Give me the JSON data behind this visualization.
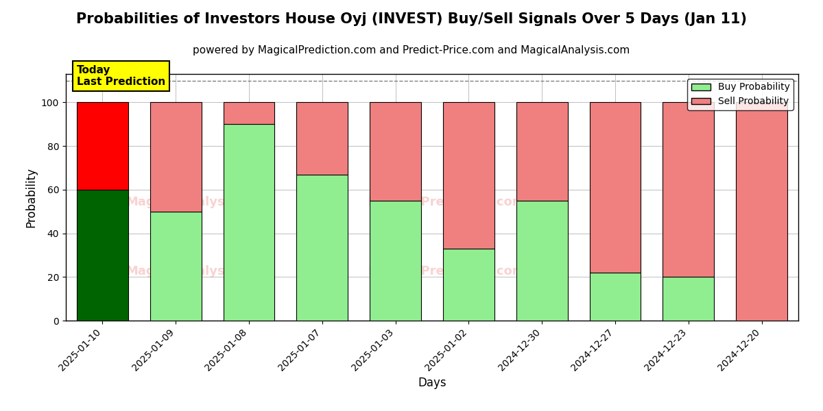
{
  "title": "Probabilities of Investors House Oyj (INVEST) Buy/Sell Signals Over 5 Days (Jan 11)",
  "subtitle": "powered by MagicalPrediction.com and Predict-Price.com and MagicalAnalysis.com",
  "xlabel": "Days",
  "ylabel": "Probability",
  "categories": [
    "2025-01-10",
    "2025-01-09",
    "2025-01-08",
    "2025-01-07",
    "2025-01-03",
    "2025-01-02",
    "2024-12-30",
    "2024-12-27",
    "2024-12-23",
    "2024-12-20"
  ],
  "buy_values": [
    60,
    50,
    90,
    67,
    55,
    33,
    55,
    22,
    20,
    0
  ],
  "sell_values": [
    40,
    50,
    10,
    33,
    45,
    67,
    45,
    78,
    80,
    100
  ],
  "today_index": 0,
  "buy_color_today": "#006400",
  "sell_color_today": "#ff0000",
  "buy_color_normal": "#90ee90",
  "sell_color_normal": "#f08080",
  "annotation_text": "Today\nLast Prediction",
  "annotation_bg": "#ffff00",
  "annotation_fontsize": 11,
  "ylim": [
    0,
    113
  ],
  "yticks": [
    0,
    20,
    40,
    60,
    80,
    100
  ],
  "dashed_line_y": 110,
  "title_fontsize": 15,
  "subtitle_fontsize": 11,
  "axis_label_fontsize": 12,
  "tick_fontsize": 10,
  "legend_fontsize": 10,
  "bar_width": 0.7,
  "watermark_color": "#f08080",
  "watermark_alpha": 0.35
}
